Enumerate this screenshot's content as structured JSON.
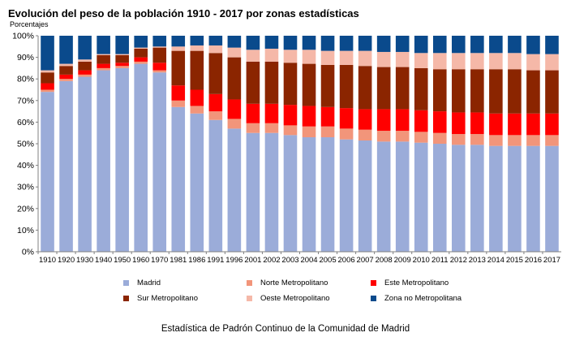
{
  "chart_data": {
    "type": "bar",
    "stacked": true,
    "title": "Evolución del peso de la población 1910 - 2017 por zonas estadísticas",
    "subtitle": "Porcentajes",
    "ylim": [
      0,
      100
    ],
    "yticks": [
      "0%",
      "10%",
      "20%",
      "30%",
      "40%",
      "50%",
      "60%",
      "70%",
      "80%",
      "90%",
      "100%"
    ],
    "grid": false,
    "legend_position": "bottom",
    "categories": [
      "1910",
      "1920",
      "1930",
      "1940",
      "1950",
      "1960",
      "1970",
      "1981",
      "1986",
      "1991",
      "1996",
      "2001",
      "2002",
      "2003",
      "2004",
      "2005",
      "2006",
      "2007",
      "2008",
      "2009",
      "2010",
      "2011",
      "2012",
      "2013",
      "2014",
      "2015",
      "2016",
      "2017"
    ],
    "series": [
      {
        "name": "Madrid",
        "color": "#9bacd9",
        "values": [
          74,
          79,
          81,
          84,
          85,
          87,
          83,
          67,
          64,
          61,
          57,
          55,
          55,
          54,
          53,
          53,
          52,
          51.5,
          51,
          51,
          50.5,
          50,
          49.5,
          49.5,
          49,
          49,
          49,
          49
        ]
      },
      {
        "name": "Norte Metropolitano",
        "color": "#f2957a",
        "values": [
          1,
          1,
          1,
          1,
          1,
          1,
          1,
          3,
          3.5,
          4,
          4.5,
          4.5,
          4.5,
          4.5,
          5,
          5,
          5,
          5,
          5,
          5,
          5,
          5,
          5,
          5,
          5,
          5,
          5,
          5
        ]
      },
      {
        "name": "Este Metropolitano",
        "color": "#ff0000",
        "values": [
          3,
          2,
          2,
          2,
          1.5,
          2,
          3.5,
          7,
          7.5,
          8,
          9,
          9,
          9,
          9.5,
          9.5,
          9,
          9.5,
          9.5,
          10,
          10,
          10,
          10,
          10,
          10,
          10,
          10,
          10,
          10
        ]
      },
      {
        "name": "Sur Metropolitano",
        "color": "#8b2500",
        "values": [
          5,
          4,
          4,
          4,
          3.5,
          4,
          7,
          16,
          18,
          19,
          19.5,
          19.5,
          19.5,
          19.5,
          19.5,
          19.5,
          20,
          20,
          19.5,
          19.5,
          19.5,
          19.5,
          20,
          20,
          20.5,
          20.5,
          20,
          20
        ]
      },
      {
        "name": "Oeste Metropolitano",
        "color": "#f5b8a8",
        "values": [
          1,
          1,
          1,
          0.5,
          0.5,
          0.5,
          0.5,
          2,
          2.5,
          3.5,
          4.5,
          5.5,
          6,
          6,
          6.5,
          6.5,
          6.5,
          7,
          7,
          7,
          7,
          7.5,
          7.5,
          7.5,
          7.5,
          7.5,
          7.5,
          7.5
        ]
      },
      {
        "name": "Zona no Metropolitana",
        "color": "#0a4a8c",
        "values": [
          16,
          13,
          11,
          8.5,
          8.5,
          5.5,
          5,
          5,
          4.5,
          4.5,
          5.5,
          6.5,
          6,
          6.5,
          6.5,
          7,
          7,
          7,
          7.5,
          7.5,
          8,
          8,
          8,
          8,
          8,
          8,
          8.5,
          8.5
        ]
      }
    ]
  },
  "footer": {
    "caption": "Estadística de Padrón Continuo de la Comunidad de Madrid"
  }
}
